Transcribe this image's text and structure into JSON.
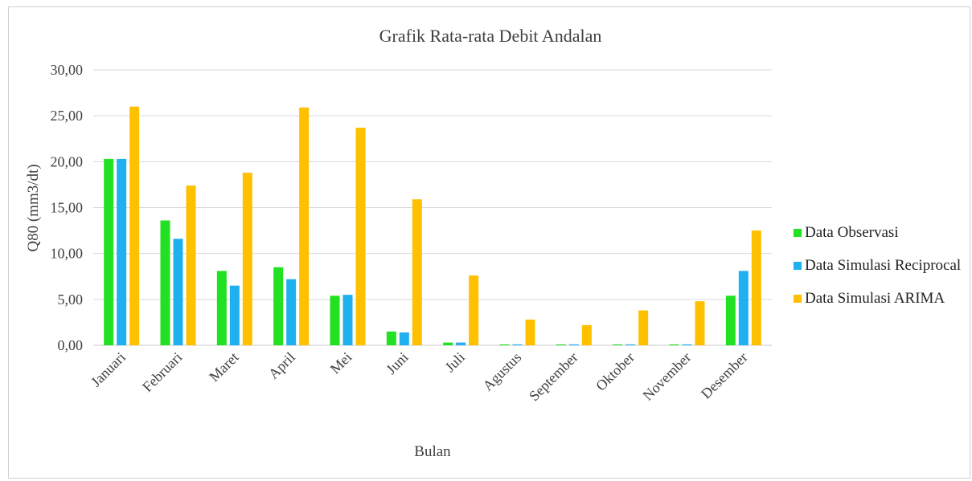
{
  "chart_data": {
    "type": "bar",
    "title": "Grafik  Rata-rata Debit Andalan",
    "xlabel": "Bulan",
    "ylabel": "Q80 (mm3/dt)",
    "ylim": [
      0,
      30
    ],
    "yticks": [
      0,
      5,
      10,
      15,
      20,
      25,
      30
    ],
    "ytick_labels": [
      "0,00",
      "5,00",
      "10,00",
      "15,00",
      "20,00",
      "25,00",
      "30,00"
    ],
    "grid": true,
    "legend_position": "right",
    "categories": [
      "Januari",
      "Februari",
      "Maret",
      "April",
      "Mei",
      "Juni",
      "Juli",
      "Agustus",
      "September",
      "Oktober",
      "November",
      "Desember"
    ],
    "series": [
      {
        "name": "Data Observasi",
        "color": "#22e022",
        "values": [
          20.3,
          13.6,
          8.1,
          8.5,
          5.4,
          1.5,
          0.3,
          0.1,
          0.1,
          0.1,
          0.1,
          5.4
        ]
      },
      {
        "name": "Data Simulasi Reciprocal",
        "color": "#1fb0f0",
        "values": [
          20.3,
          11.6,
          6.5,
          7.2,
          5.5,
          1.4,
          0.3,
          0.1,
          0.1,
          0.1,
          0.1,
          8.1
        ]
      },
      {
        "name": "Data Simulasi ARIMA",
        "color": "#ffc000",
        "values": [
          26.0,
          17.4,
          18.8,
          25.9,
          23.7,
          15.9,
          7.6,
          2.8,
          2.2,
          3.8,
          4.8,
          12.5
        ]
      }
    ]
  }
}
